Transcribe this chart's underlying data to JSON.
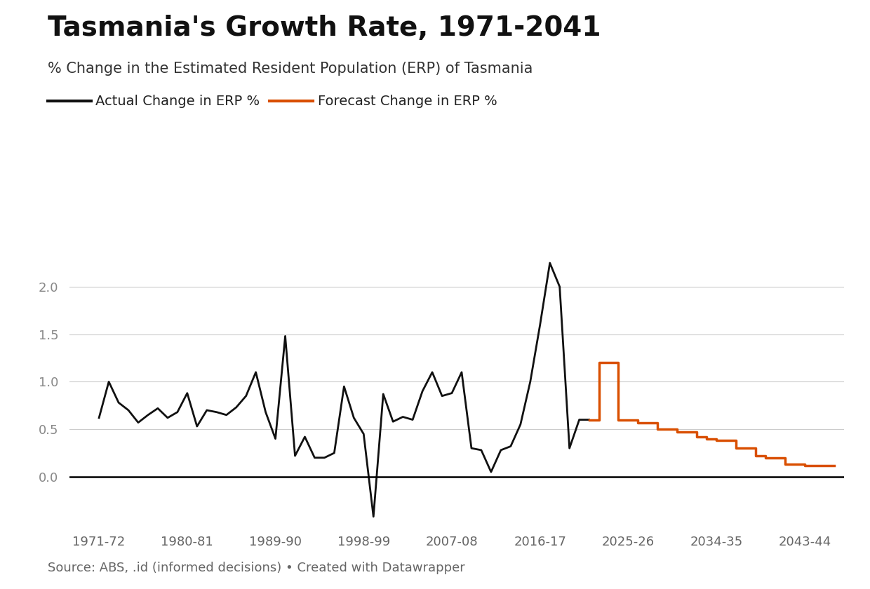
{
  "title": "Tasmania's Growth Rate, 1971-2041",
  "subtitle": "% Change in the Estimated Resident Population (ERP) of Tasmania",
  "source": "Source: ABS, .id (informed decisions) • Created with Datawrapper",
  "legend_actual": "Actual Change in ERP %",
  "legend_forecast": "Forecast Change in ERP %",
  "actual_color": "#111111",
  "forecast_color": "#d94f00",
  "background_color": "#ffffff",
  "title_fontsize": 28,
  "subtitle_fontsize": 15,
  "legend_fontsize": 14,
  "source_fontsize": 13,
  "ylim": [
    -0.5,
    2.6
  ],
  "yticks": [
    0.0,
    0.5,
    1.0,
    1.5,
    2.0
  ],
  "xtick_labels": [
    "1971-72",
    "1980-81",
    "1989-90",
    "1998-99",
    "2007-08",
    "2016-17",
    "2025-26",
    "2034-35",
    "2043-44"
  ],
  "xtick_positions": [
    1971,
    1980,
    1989,
    1998,
    2007,
    2016,
    2025,
    2034,
    2043
  ],
  "xlim": [
    1968,
    2047
  ],
  "actual_x": [
    1971,
    1972,
    1973,
    1974,
    1975,
    1976,
    1977,
    1978,
    1979,
    1980,
    1981,
    1982,
    1983,
    1984,
    1985,
    1986,
    1987,
    1988,
    1989,
    1990,
    1991,
    1992,
    1993,
    1994,
    1995,
    1996,
    1997,
    1998,
    1999,
    2000,
    2001,
    2002,
    2003,
    2004,
    2005,
    2006,
    2007,
    2008,
    2009,
    2010,
    2011,
    2012,
    2013,
    2014,
    2015,
    2016,
    2017,
    2018,
    2019,
    2020,
    2021
  ],
  "actual_y": [
    0.62,
    1.0,
    0.78,
    0.7,
    0.57,
    0.65,
    0.72,
    0.62,
    0.68,
    0.88,
    0.53,
    0.7,
    0.68,
    0.65,
    0.73,
    0.85,
    1.1,
    0.68,
    0.4,
    1.48,
    0.22,
    0.42,
    0.2,
    0.2,
    0.25,
    0.95,
    0.62,
    0.45,
    -0.42,
    0.87,
    0.58,
    0.63,
    0.6,
    0.9,
    1.1,
    0.85,
    0.88,
    1.1,
    0.3,
    0.28,
    0.05,
    0.28,
    0.32,
    0.55,
    1.0,
    1.6,
    2.25,
    2.0,
    0.3,
    0.6,
    0.6
  ],
  "forecast_x": [
    2021,
    2022,
    2023,
    2024,
    2025,
    2026,
    2027,
    2028,
    2029,
    2030,
    2031,
    2032,
    2033,
    2034,
    2035,
    2036,
    2037,
    2038,
    2039,
    2040,
    2041,
    2042,
    2043,
    2044,
    2045,
    2046
  ],
  "forecast_y": [
    0.6,
    1.2,
    1.2,
    0.6,
    0.6,
    0.57,
    0.57,
    0.5,
    0.5,
    0.47,
    0.47,
    0.42,
    0.4,
    0.38,
    0.38,
    0.3,
    0.3,
    0.22,
    0.2,
    0.2,
    0.13,
    0.13,
    0.12,
    0.12,
    0.12,
    0.12
  ]
}
